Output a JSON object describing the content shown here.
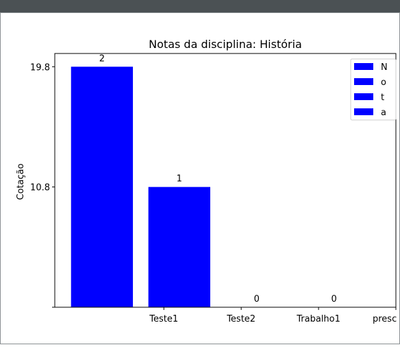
{
  "chart_data": {
    "type": "bar",
    "title": "Notas da disciplina: História",
    "ylabel": "Cotação",
    "values": [
      2,
      1,
      0,
      0
    ],
    "color": "#0000ff",
    "ycategories": [
      null,
      "10.8",
      "19.8"
    ],
    "xlim": [
      -0.61,
      3.8
    ],
    "ylim": [
      0,
      2.11
    ],
    "xticks": [
      {
        "value": 0.8,
        "label": "Teste1"
      },
      {
        "value": 1.8,
        "label": "Teste2"
      },
      {
        "value": 2.8,
        "label": "Trabalho1"
      },
      {
        "value": 3.8,
        "label": "presc"
      }
    ],
    "legend": [
      "N",
      "o",
      "t",
      "a"
    ],
    "legend_position": "upper right"
  }
}
